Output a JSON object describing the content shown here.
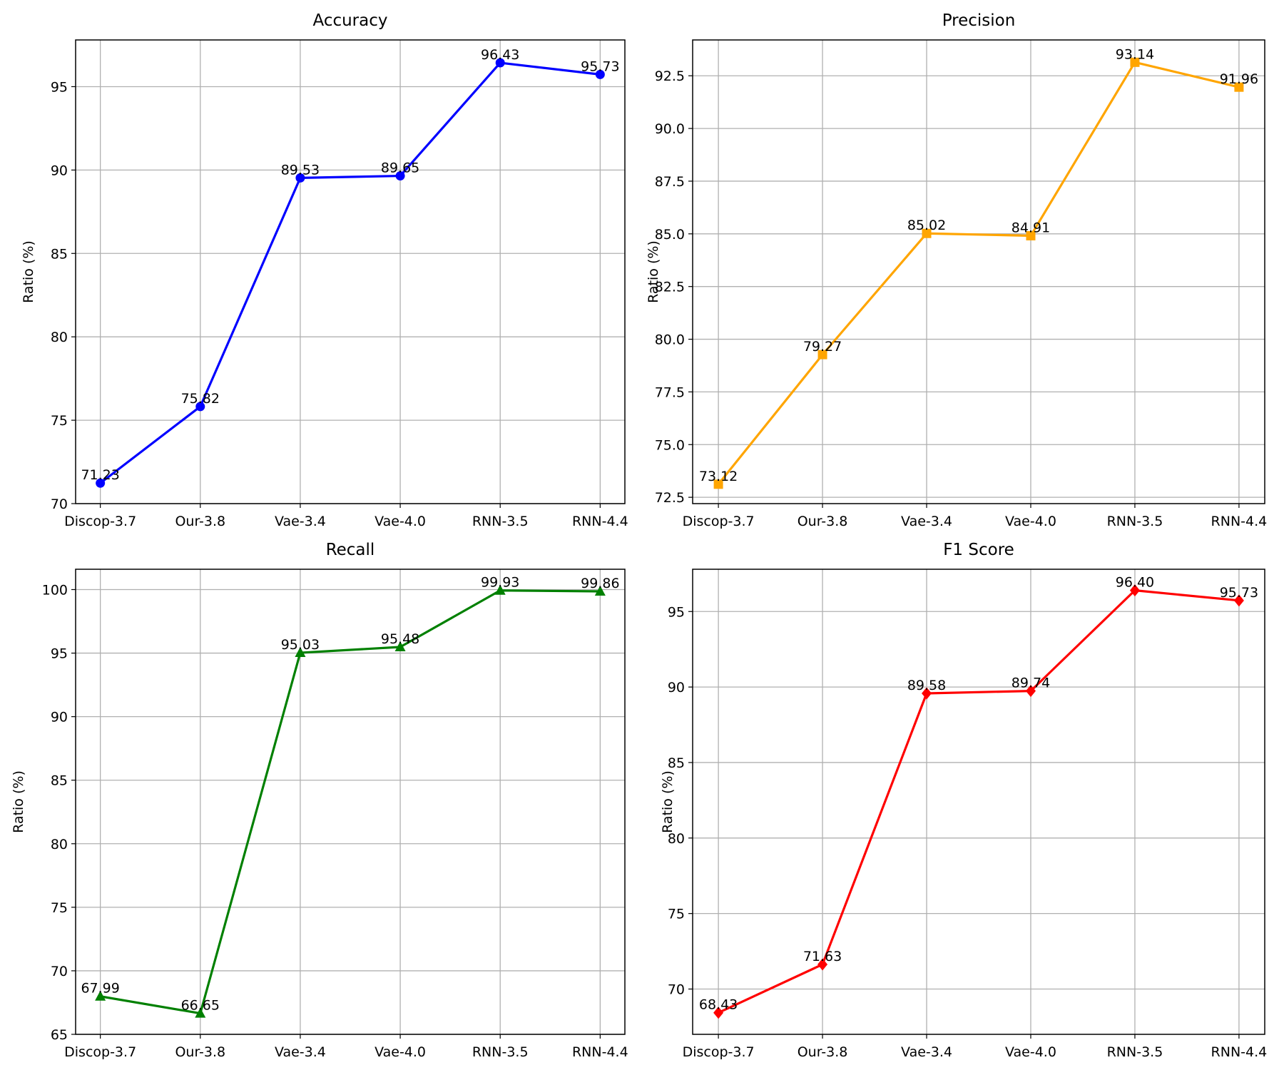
{
  "chart_data": [
    {
      "type": "line",
      "title": "Accuracy",
      "xlabel": "",
      "ylabel": "Ratio (%)",
      "categories": [
        "Discop-3.7",
        "Our-3.8",
        "Vae-3.4",
        "Vae-4.0",
        "RNN-3.5",
        "RNN-4.4"
      ],
      "values": [
        71.23,
        75.82,
        89.53,
        89.65,
        96.43,
        95.73
      ],
      "labels": [
        "71.23",
        "75.82",
        "89.53",
        "89.65",
        "96.43",
        "95.73"
      ],
      "yticks": [
        70,
        75,
        80,
        85,
        90,
        95
      ],
      "ytick_labels": [
        "70",
        "75",
        "80",
        "85",
        "90",
        "95"
      ],
      "ylim": [
        70,
        97.8
      ],
      "color": "#0000ff",
      "marker": "circle",
      "grid": true
    },
    {
      "type": "line",
      "title": "Precision",
      "xlabel": "",
      "ylabel": "Ratio (%)",
      "categories": [
        "Discop-3.7",
        "Our-3.8",
        "Vae-3.4",
        "Vae-4.0",
        "RNN-3.5",
        "RNN-4.4"
      ],
      "values": [
        73.12,
        79.27,
        85.02,
        84.91,
        93.14,
        91.96
      ],
      "labels": [
        "73.12",
        "79.27",
        "85.02",
        "84.91",
        "93.14",
        "91.96"
      ],
      "yticks": [
        72.5,
        75.0,
        77.5,
        80.0,
        82.5,
        85.0,
        87.5,
        90.0,
        92.5
      ],
      "ytick_labels": [
        "72.5",
        "75.0",
        "77.5",
        "80.0",
        "82.5",
        "85.0",
        "87.5",
        "90.0",
        "92.5"
      ],
      "ylim": [
        72.2,
        94.2
      ],
      "color": "#ffa500",
      "marker": "square",
      "grid": true
    },
    {
      "type": "line",
      "title": "Recall",
      "xlabel": "",
      "ylabel": "Ratio (%)",
      "categories": [
        "Discop-3.7",
        "Our-3.8",
        "Vae-3.4",
        "Vae-4.0",
        "RNN-3.5",
        "RNN-4.4"
      ],
      "values": [
        67.99,
        66.65,
        95.03,
        95.48,
        99.93,
        99.86
      ],
      "labels": [
        "67.99",
        "66.65",
        "95.03",
        "95.48",
        "99.93",
        "99.86"
      ],
      "yticks": [
        65,
        70,
        75,
        80,
        85,
        90,
        95,
        100
      ],
      "ytick_labels": [
        "65",
        "70",
        "75",
        "80",
        "85",
        "90",
        "95",
        "100"
      ],
      "ylim": [
        65,
        101.6
      ],
      "color": "#008000",
      "marker": "triangle",
      "grid": true
    },
    {
      "type": "line",
      "title": "F1 Score",
      "xlabel": "",
      "ylabel": "Ratio (%)",
      "categories": [
        "Discop-3.7",
        "Our-3.8",
        "Vae-3.4",
        "Vae-4.0",
        "RNN-3.5",
        "RNN-4.4"
      ],
      "values": [
        68.43,
        71.63,
        89.58,
        89.74,
        96.4,
        95.73
      ],
      "labels": [
        "68.43",
        "71.63",
        "89.58",
        "89.74",
        "96.40",
        "95.73"
      ],
      "yticks": [
        70,
        75,
        80,
        85,
        90,
        95
      ],
      "ytick_labels": [
        "70",
        "75",
        "80",
        "85",
        "90",
        "95"
      ],
      "ylim": [
        67.0,
        97.8
      ],
      "color": "#ff0000",
      "marker": "diamond",
      "grid": true
    }
  ]
}
